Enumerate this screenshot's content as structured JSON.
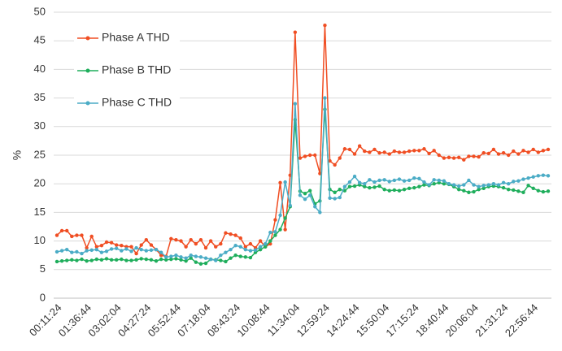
{
  "chart_data": {
    "type": "line",
    "ylabel": "%",
    "categories": [
      "00:11:24",
      null,
      null,
      null,
      null,
      null,
      "01:36:44",
      null,
      null,
      null,
      null,
      null,
      "03:02:04",
      null,
      null,
      null,
      null,
      null,
      "04:27:24",
      null,
      null,
      null,
      null,
      null,
      "05:52:44",
      null,
      null,
      null,
      null,
      null,
      "07:18:04",
      null,
      null,
      null,
      null,
      null,
      "08:43:24",
      null,
      null,
      null,
      null,
      null,
      "10:08:44",
      null,
      null,
      null,
      null,
      null,
      "11:34:04",
      null,
      null,
      null,
      null,
      null,
      "12:59:24",
      null,
      null,
      null,
      null,
      null,
      "14:24:44",
      null,
      null,
      null,
      null,
      null,
      "15:50:04",
      null,
      null,
      null,
      null,
      null,
      "17:15:24",
      null,
      null,
      null,
      null,
      null,
      "18:40:44",
      null,
      null,
      null,
      null,
      null,
      "20:06:04",
      null,
      null,
      null,
      null,
      null,
      "21:31:24",
      null,
      null,
      null,
      null,
      null,
      "22:56:44",
      null,
      null,
      null
    ],
    "series": [
      {
        "name": "Phase A THD",
        "color": "#f04e23",
        "values": [
          11,
          11.8,
          11.8,
          10.8,
          11,
          11,
          8.8,
          10.8,
          9,
          9.2,
          9.8,
          9.7,
          9.3,
          9.2,
          9,
          9,
          7.8,
          9.3,
          10.2,
          9.3,
          8.5,
          7.5,
          7.3,
          10.4,
          10.2,
          10,
          9,
          10.2,
          9.5,
          10.2,
          8.8,
          10,
          9,
          9.5,
          11.4,
          11.2,
          11,
          10.5,
          9,
          9.5,
          8.8,
          10,
          9,
          9.5,
          13.7,
          20.2,
          12,
          21.5,
          46.5,
          24.5,
          24.8,
          25,
          25,
          21.8,
          47.7,
          24,
          23.3,
          24.5,
          26.1,
          26,
          25.2,
          26.6,
          25.7,
          25.5,
          26,
          25.4,
          25.5,
          25.2,
          25.7,
          25.5,
          25.5,
          25.7,
          25.8,
          25.8,
          26.1,
          25.3,
          25.8,
          25,
          24.5,
          24.6,
          24.5,
          24.6,
          24.2,
          24.8,
          24.8,
          24.7,
          25.4,
          25.3,
          26,
          25.2,
          25.4,
          25,
          25.7,
          25.2,
          25.8,
          25.5,
          26,
          25.5,
          25.8,
          26
        ]
      },
      {
        "name": "Phase B THD",
        "color": "#1fae5c",
        "values": [
          6.4,
          6.5,
          6.6,
          6.7,
          6.6,
          6.8,
          6.5,
          6.6,
          6.8,
          6.7,
          6.9,
          6.7,
          6.7,
          6.8,
          6.6,
          6.6,
          6.7,
          6.9,
          6.8,
          6.7,
          6.5,
          6.8,
          6.7,
          6.8,
          6.9,
          6.7,
          6.5,
          7,
          6.3,
          6,
          6.1,
          6.8,
          6.7,
          6.6,
          6.4,
          7,
          7.5,
          7.3,
          7.2,
          7.1,
          8,
          8.5,
          9,
          10,
          11,
          12,
          14,
          16,
          31.2,
          18.7,
          18.3,
          18.8,
          16.5,
          17,
          33,
          19,
          18.5,
          19,
          18.8,
          19.5,
          19.6,
          19.8,
          19.5,
          19.3,
          19.4,
          19.6,
          19,
          18.8,
          18.9,
          18.8,
          19,
          19.2,
          19.3,
          19.5,
          19.8,
          19.7,
          20,
          20.2,
          20,
          19.9,
          19.5,
          19,
          18.8,
          18.5,
          18.6,
          19,
          19.2,
          19.5,
          19.6,
          19.5,
          19.3,
          19,
          18.9,
          18.7,
          18.5,
          19.7,
          19.2,
          18.8,
          18.6,
          18.7
        ]
      },
      {
        "name": "Phase C THD",
        "color": "#4bacc6",
        "values": [
          8.1,
          8.3,
          8.5,
          8,
          8.1,
          7.8,
          8.3,
          8.4,
          8.5,
          8,
          8.2,
          8.6,
          8.7,
          8.3,
          8.6,
          8.2,
          8.8,
          8.5,
          8.3,
          8.4,
          8.5,
          8,
          7.2,
          7.3,
          7.5,
          7.2,
          7,
          7.5,
          7.3,
          7.2,
          7,
          6.8,
          6.6,
          7.5,
          8,
          8.5,
          9.2,
          9,
          8.5,
          8.3,
          8.4,
          9,
          9.5,
          11.5,
          11.6,
          14.5,
          20.3,
          16.2,
          34,
          18,
          17.3,
          18,
          16,
          15,
          35,
          17.5,
          17.4,
          17.6,
          19.5,
          20.3,
          21.3,
          20.2,
          20,
          20.7,
          20.3,
          20.6,
          20.7,
          20.4,
          20.6,
          20.8,
          20.5,
          20.6,
          21,
          20.9,
          20.3,
          19.8,
          20.7,
          20.6,
          20.5,
          20,
          19.8,
          19.6,
          19.8,
          20.6,
          19.8,
          19.5,
          19.7,
          19.8,
          20,
          19.8,
          20.2,
          20,
          20.4,
          20.5,
          20.8,
          21,
          21.2,
          21.4,
          21.5,
          21.4
        ]
      }
    ],
    "ylim": [
      0,
      50
    ],
    "yticks": [
      0,
      5,
      10,
      15,
      20,
      25,
      30,
      35,
      40,
      45,
      50
    ],
    "grid": true,
    "legend": "upper left"
  }
}
